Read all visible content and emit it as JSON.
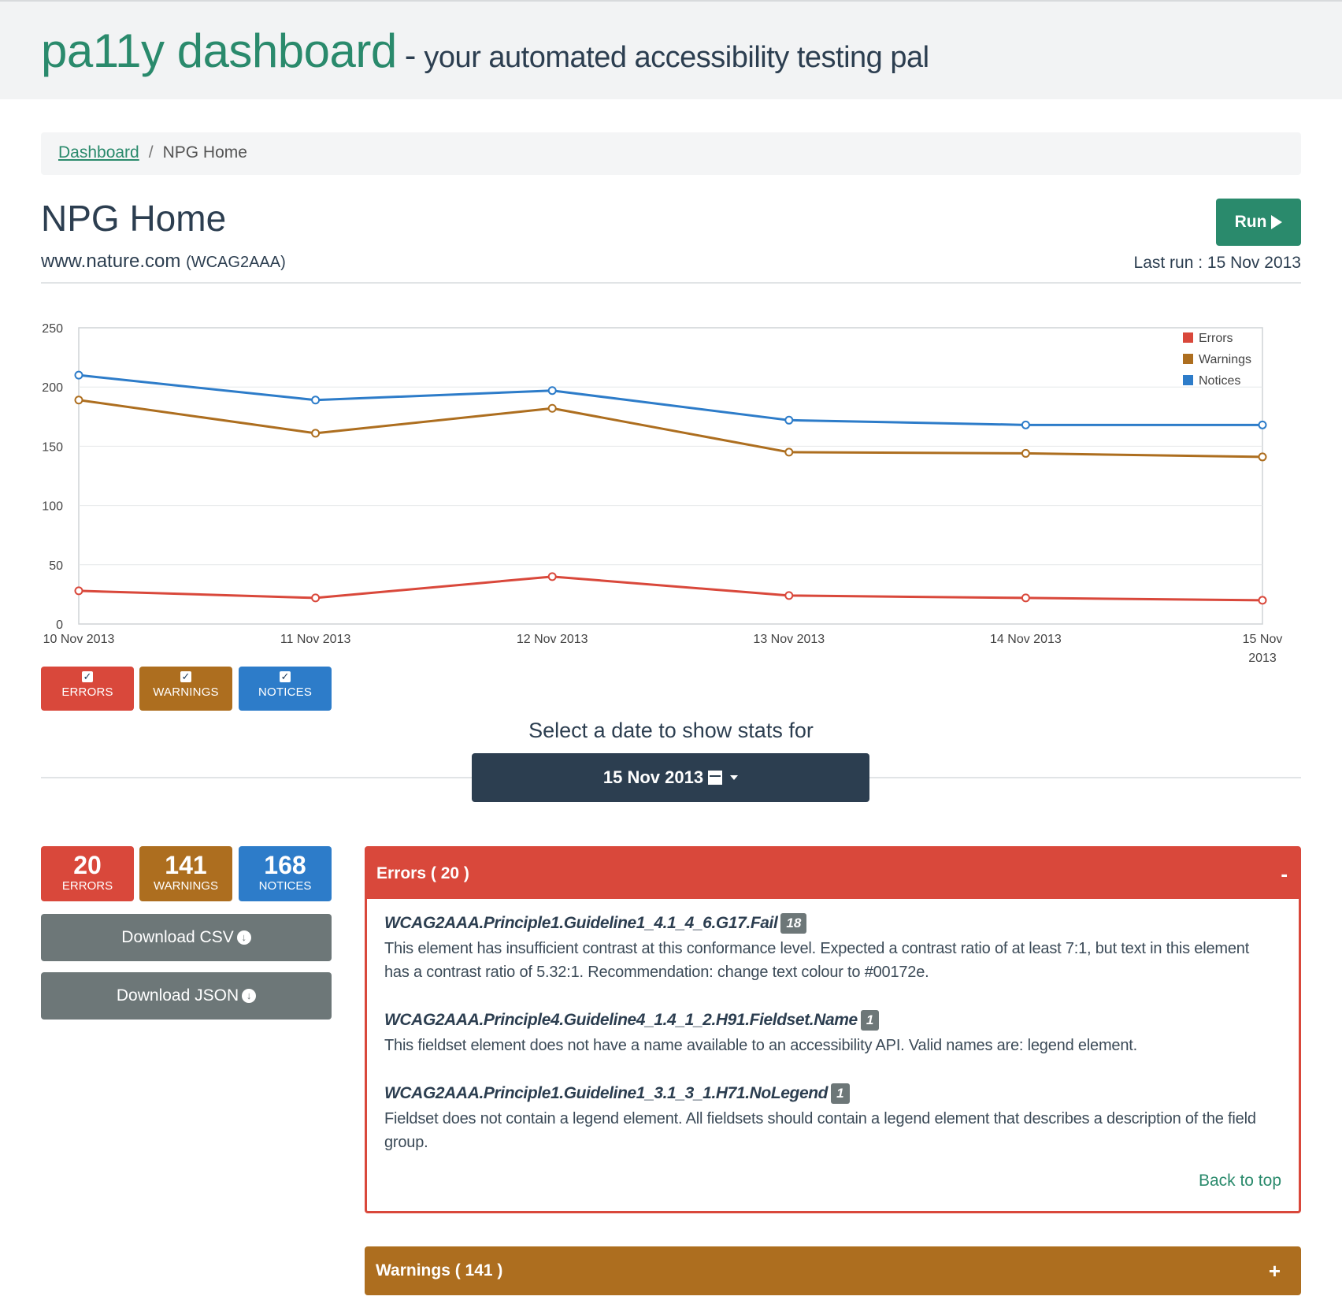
{
  "header": {
    "brand": "pa11y dashboard",
    "separator": "-",
    "tagline": "your automated accessibility testing pal"
  },
  "breadcrumb": {
    "home_label": "Dashboard",
    "separator": "/",
    "current": "NPG Home"
  },
  "task": {
    "title": "NPG Home",
    "url": "www.nature.com",
    "standard": "(WCAG2AAA)",
    "run_label": "Run",
    "last_run": "Last run : 15 Nov 2013"
  },
  "chart_data": {
    "type": "line",
    "categories": [
      "10 Nov 2013",
      "11 Nov 2013",
      "12 Nov 2013",
      "13 Nov 2013",
      "14 Nov 2013",
      "15 Nov 2013"
    ],
    "series": [
      {
        "name": "Errors",
        "color": "#d9483b",
        "values": [
          28,
          22,
          40,
          24,
          22,
          20
        ]
      },
      {
        "name": "Warnings",
        "color": "#ad6e1f",
        "values": [
          189,
          161,
          182,
          145,
          144,
          141
        ]
      },
      {
        "name": "Notices",
        "color": "#2d7cc9",
        "values": [
          210,
          189,
          197,
          172,
          168,
          168
        ]
      }
    ],
    "yticks": [
      "0",
      "50",
      "100",
      "150",
      "200",
      "250"
    ],
    "ylim": [
      0,
      250
    ],
    "legend_position": "top-right",
    "grid": true
  },
  "toggles": {
    "errors": "ERRORS",
    "warnings": "WARNINGS",
    "notices": "NOTICES",
    "check_glyph": "✓"
  },
  "date_select": {
    "label": "Select a date to show stats for",
    "value": "15 Nov 2013"
  },
  "counts": {
    "errors": {
      "value": "20",
      "label": "ERRORS"
    },
    "warnings": {
      "value": "141",
      "label": "WARNINGS"
    },
    "notices": {
      "value": "168",
      "label": "NOTICES"
    }
  },
  "downloads": {
    "csv": "Download CSV",
    "json": "Download JSON"
  },
  "errors_panel": {
    "title": "Errors ( 20 )",
    "toggle": "-",
    "issues": [
      {
        "code": "WCAG2AAA.Principle1.Guideline1_4.1_4_6.G17.Fail",
        "count": "18",
        "message": "This element has insufficient contrast at this conformance level. Expected a contrast ratio of at least 7:1, but text in this element has a contrast ratio of 5.32:1. Recommendation: change text colour to #00172e."
      },
      {
        "code": "WCAG2AAA.Principle4.Guideline4_1.4_1_2.H91.Fieldset.Name",
        "count": "1",
        "message": "This fieldset element does not have a name available to an accessibility API. Valid names are: legend element."
      },
      {
        "code": "WCAG2AAA.Principle1.Guideline1_3.1_3_1.H71.NoLegend",
        "count": "1",
        "message": "Fieldset does not contain a legend element. All fieldsets should contain a legend element that describes a description of the field group."
      }
    ],
    "back_to_top": "Back to top"
  },
  "warnings_panel": {
    "title": "Warnings ( 141 )",
    "toggle": "+"
  }
}
